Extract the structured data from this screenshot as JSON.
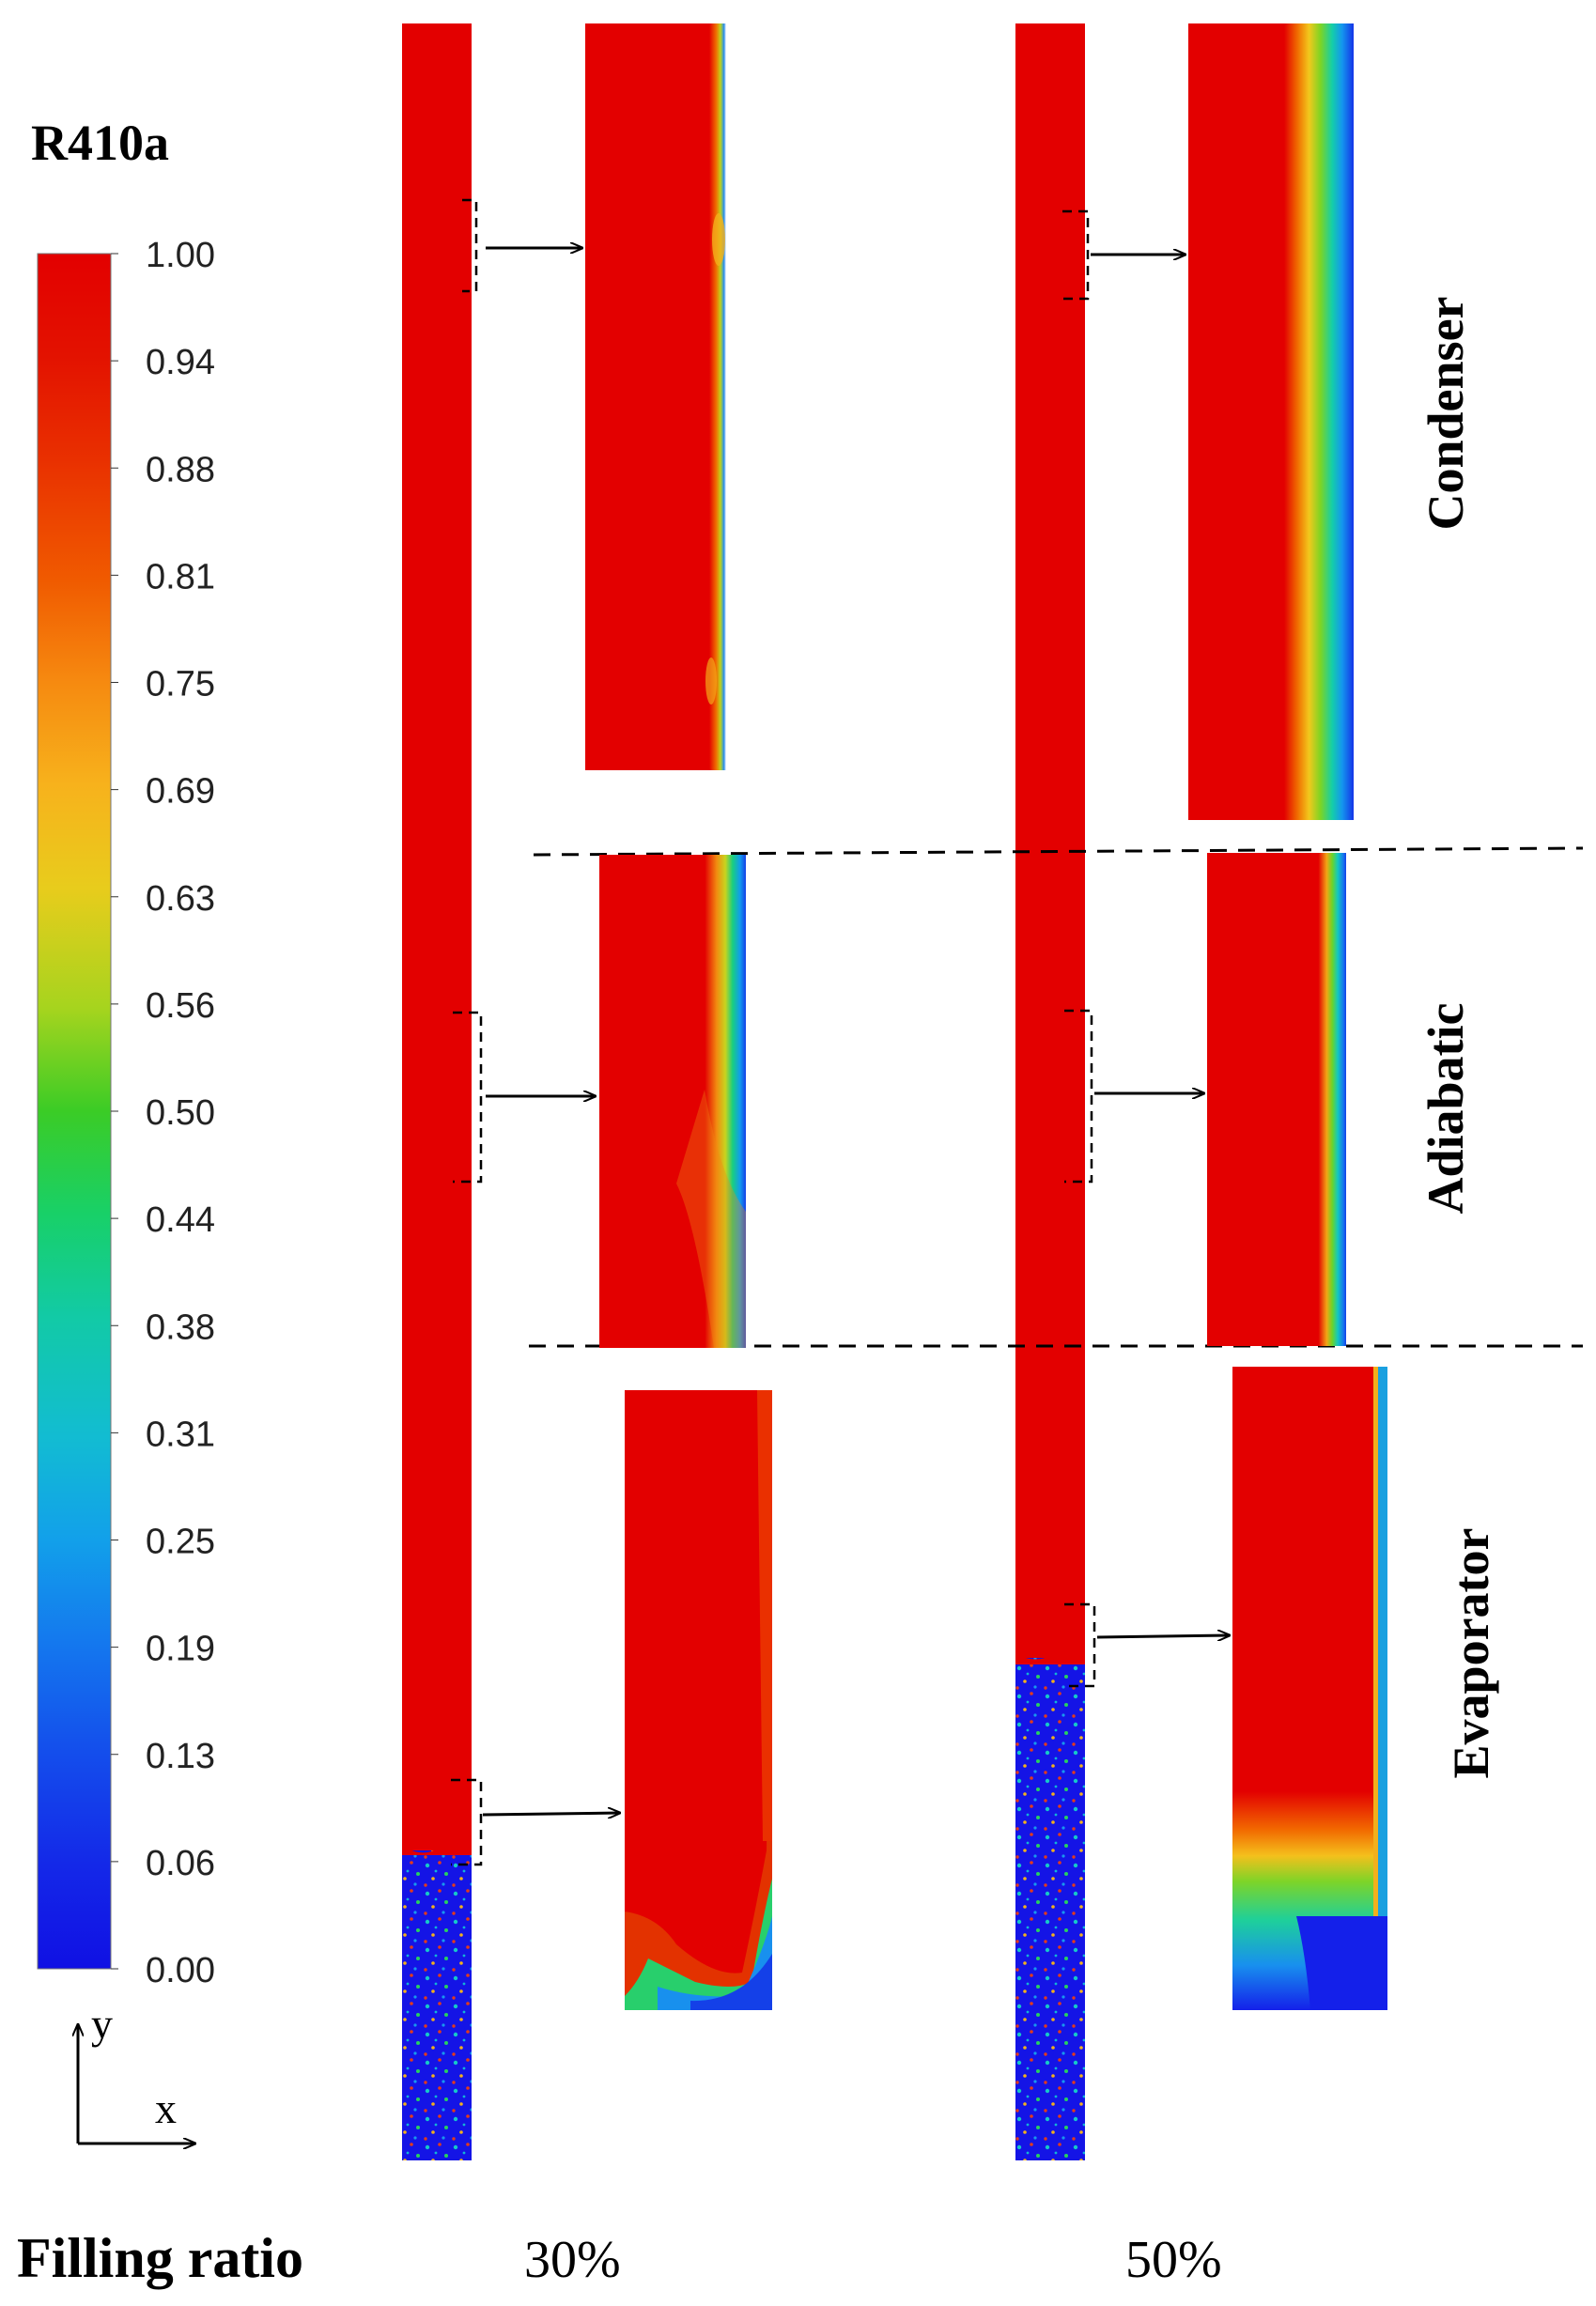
{
  "legend": {
    "title": "R410a",
    "ticks": [
      "1.00",
      "0.94",
      "0.88",
      "0.81",
      "0.75",
      "0.69",
      "0.63",
      "0.56",
      "0.50",
      "0.44",
      "0.38",
      "0.31",
      "0.25",
      "0.19",
      "0.13",
      "0.06",
      "0.00"
    ],
    "color_stops": [
      "#e30000",
      "#e31b00",
      "#ea3a00",
      "#f26a00",
      "#f79a12",
      "#f6c21e",
      "#d9d51a",
      "#8cd51e",
      "#20c930",
      "#18d27a",
      "#12c9b2",
      "#12b5d6",
      "#1290ef",
      "#1460ef",
      "#1430ea",
      "#1010e6"
    ]
  },
  "axes": {
    "y": "y",
    "x": "x"
  },
  "zones": {
    "condenser": "Condenser",
    "adiabatic": "Adiabatic",
    "evaporator": "Evaporator"
  },
  "filling": {
    "label": "Filling ratio",
    "ratio_1": "30%",
    "ratio_2": "50%"
  },
  "colors": {
    "vapor": "#e30000",
    "liquid": "#1414e6",
    "arrow": "#000000"
  }
}
